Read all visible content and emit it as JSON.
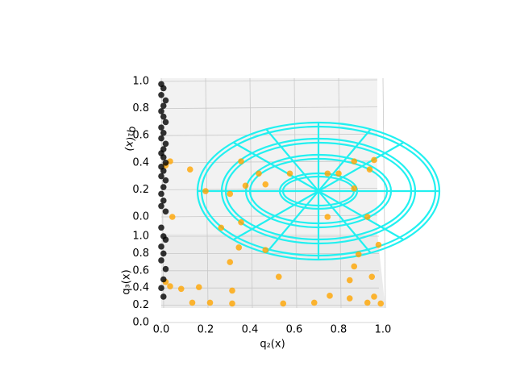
{
  "chart_data": {
    "type": "scatter3d",
    "xlabel": "q₂(x)",
    "ylabel": "q₃(x)",
    "zlabel": "q₁(x)",
    "xlim": [
      0,
      1
    ],
    "ylim": [
      0,
      1
    ],
    "zlim": [
      0,
      1
    ],
    "xticks": [
      {
        "value": 0,
        "label": "0.0"
      },
      {
        "value": 0.2,
        "label": "0.2"
      },
      {
        "value": 0.4,
        "label": "0.4"
      },
      {
        "value": 0.6,
        "label": "0.6"
      },
      {
        "value": 0.8,
        "label": "0.8"
      },
      {
        "value": 1,
        "label": "1.0"
      }
    ],
    "yticks": [
      {
        "value": 0,
        "label": "0.0"
      },
      {
        "value": 0.2,
        "label": "0.2"
      },
      {
        "value": 0.4,
        "label": "0.4"
      },
      {
        "value": 0.6,
        "label": "0.6"
      },
      {
        "value": 0.8,
        "label": "0.8"
      },
      {
        "value": 1,
        "label": "1.0"
      }
    ],
    "zticks": [
      {
        "value": 0,
        "label": "0.0"
      },
      {
        "value": 0.2,
        "label": "0.2"
      },
      {
        "value": 0.4,
        "label": "0.4"
      },
      {
        "value": 0.6,
        "label": "0.6"
      },
      {
        "value": 0.8,
        "label": "0.8"
      },
      {
        "value": 1,
        "label": "1.0"
      }
    ],
    "grid": true,
    "series": [
      {
        "color": "#ffa500",
        "axis": "z",
        "x": [
          0.13,
          0.36,
          0.38,
          0.47,
          0.44,
          0.58,
          0.8,
          0.87,
          0.96,
          0.94,
          0.36,
          0.27,
          0.75,
          0.93,
          0.05,
          0.04,
          0.02,
          0.2,
          0.31,
          0.87,
          0.75
        ],
        "values": [
          0.35,
          0.41,
          0.23,
          0.24,
          0.32,
          0.32,
          0.32,
          0.41,
          0.42,
          0.35,
          -0.04,
          -0.08,
          0,
          0,
          0,
          0.41,
          0.38,
          0.19,
          0.17,
          0.21,
          0.32
        ]
      },
      {
        "color": "#ffa500",
        "axis": "y",
        "x": [
          0.31,
          0.35,
          0.47,
          0.53,
          0.09,
          0.17,
          0.32,
          0.14,
          0.22,
          0.32,
          0.55,
          0.69,
          0.76,
          0.85,
          0.87,
          0.95,
          0.96,
          0.85,
          0.93,
          0.04,
          0.02,
          0.99,
          0.98,
          0.89
        ],
        "values": [
          0.7,
          0.87,
          0.84,
          0.53,
          0.39,
          0.41,
          0.37,
          0.23,
          0.23,
          0.22,
          0.22,
          0.23,
          0.31,
          0.49,
          0.65,
          0.53,
          0.3,
          0.28,
          0.23,
          0.42,
          0.47,
          0.22,
          0.9,
          0.79
        ]
      },
      {
        "color": "#000000",
        "axis": "z",
        "x": [
          0.0,
          0.01,
          0.0,
          0.02,
          0.01,
          0.0,
          0.01,
          0.02,
          0.0,
          0.01,
          0.0,
          0.02,
          0.01,
          0.0,
          0.01,
          0.02,
          0.0,
          0.01,
          0.0,
          0.02,
          0.01,
          0.0,
          0.01,
          0.0,
          0.02
        ],
        "values": [
          0.98,
          0.95,
          0.9,
          0.86,
          0.82,
          0.78,
          0.74,
          0.7,
          0.66,
          0.62,
          0.58,
          0.54,
          0.5,
          0.47,
          0.44,
          0.4,
          0.37,
          0.34,
          0.3,
          0.27,
          0.22,
          0.17,
          0.12,
          0.08,
          0.04
        ]
      },
      {
        "color": "#000000",
        "axis": "y",
        "x": [
          0.0,
          0.01,
          0.02,
          0.0,
          0.01,
          0.0,
          0.02,
          0.01,
          0.0,
          0.01
        ],
        "values": [
          1.1,
          1.0,
          0.96,
          0.88,
          0.8,
          0.72,
          0.62,
          0.5,
          0.4,
          0.3
        ]
      }
    ]
  }
}
